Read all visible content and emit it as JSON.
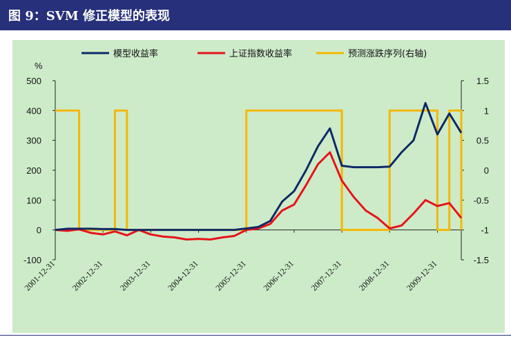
{
  "title": "图 9：SVM 修正模型的表现",
  "chart_data": {
    "type": "line",
    "unit_label": "%",
    "x": [
      "2001-12-31",
      "2002-03-31",
      "2002-06-30",
      "2002-09-30",
      "2002-12-31",
      "2003-03-31",
      "2003-06-30",
      "2003-09-30",
      "2003-12-31",
      "2004-03-31",
      "2004-06-30",
      "2004-09-30",
      "2004-12-31",
      "2005-03-31",
      "2005-06-30",
      "2005-09-30",
      "2005-12-31",
      "2006-03-31",
      "2006-06-30",
      "2006-09-30",
      "2006-12-31",
      "2007-03-31",
      "2007-06-30",
      "2007-09-30",
      "2007-12-31",
      "2008-03-31",
      "2008-06-30",
      "2008-09-30",
      "2008-12-31",
      "2009-03-31",
      "2009-06-30",
      "2009-09-30",
      "2009-12-31",
      "2010-03-31",
      "2010-06-30"
    ],
    "x_tick_labels": [
      "2001-12-31",
      "2002-12-31",
      "2003-12-31",
      "2004-12-31",
      "2005-12-31",
      "2006-12-31",
      "2007-12-31",
      "2008-12-31",
      "2009-12-31"
    ],
    "y_left": {
      "min": -100,
      "max": 500,
      "ticks": [
        "-100",
        "0",
        "100",
        "200",
        "300",
        "400",
        "500"
      ]
    },
    "y_right": {
      "min": -1.5,
      "max": 1.5,
      "ticks": [
        "-1.5",
        "-1",
        "-0.5",
        "0",
        "0.5",
        "1",
        "1.5"
      ]
    },
    "series": [
      {
        "name": "模型收益率",
        "axis": "left",
        "color": "#0c2a66",
        "values": [
          0,
          4,
          4,
          4,
          3,
          3,
          0,
          0,
          0,
          0,
          0,
          0,
          0,
          0,
          0,
          0,
          5,
          10,
          30,
          95,
          130,
          200,
          280,
          340,
          215,
          210,
          210,
          210,
          212,
          260,
          300,
          425,
          320,
          390,
          325
        ]
      },
      {
        "name": "上证指数收益率",
        "axis": "left",
        "color": "#e8121a",
        "values": [
          0,
          -3,
          2,
          -10,
          -15,
          -5,
          -18,
          0,
          -15,
          -22,
          -25,
          -32,
          -30,
          -32,
          -25,
          -20,
          0,
          5,
          20,
          65,
          85,
          150,
          220,
          260,
          165,
          110,
          65,
          40,
          5,
          15,
          55,
          100,
          80,
          90,
          40
        ]
      },
      {
        "name": "预测涨跌序列(右轴)",
        "axis": "right",
        "color": "#f5b800",
        "values": [
          1,
          1,
          -1,
          -1,
          -1,
          1,
          -1,
          -1,
          -1,
          -1,
          -1,
          -1,
          -1,
          -1,
          -1,
          -1,
          1,
          1,
          1,
          1,
          1,
          1,
          1,
          1,
          -1,
          -1,
          -1,
          -1,
          1,
          1,
          1,
          1,
          -1,
          1,
          -1
        ]
      }
    ]
  }
}
